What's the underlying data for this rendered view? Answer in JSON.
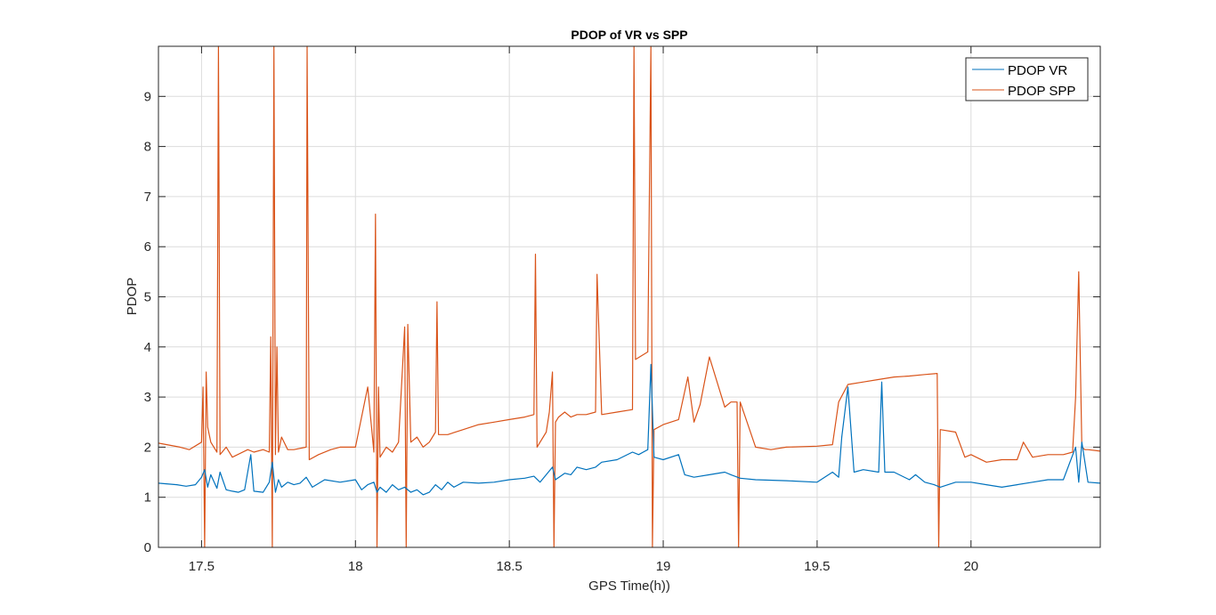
{
  "chart_data": {
    "type": "line",
    "title": "PDOP of VR vs SPP",
    "xlabel": "GPS Time(h))",
    "ylabel": "PDOP",
    "xlim": [
      17.36,
      20.42
    ],
    "ylim": [
      0,
      10
    ],
    "xticks": [
      17.5,
      18,
      18.5,
      19,
      19.5,
      20
    ],
    "xtick_labels": [
      "17.5",
      "18",
      "18.5",
      "19",
      "19.5",
      "20"
    ],
    "yticks": [
      0,
      1,
      2,
      3,
      4,
      5,
      6,
      7,
      8,
      9
    ],
    "ytick_labels": [
      "0",
      "1",
      "2",
      "3",
      "4",
      "5",
      "6",
      "7",
      "8",
      "9"
    ],
    "grid": true,
    "legend_position": "top-right",
    "colors": {
      "vr": "#0072BD",
      "spp": "#D95319"
    },
    "series": [
      {
        "name": "PDOP VR",
        "color": "#0072BD",
        "x": [
          17.36,
          17.42,
          17.45,
          17.48,
          17.5,
          17.51,
          17.52,
          17.53,
          17.55,
          17.56,
          17.58,
          17.6,
          17.62,
          17.64,
          17.66,
          17.67,
          17.7,
          17.72,
          17.73,
          17.74,
          17.75,
          17.76,
          17.78,
          17.8,
          17.82,
          17.84,
          17.86,
          17.9,
          17.95,
          18.0,
          18.02,
          18.04,
          18.06,
          18.07,
          18.08,
          18.1,
          18.12,
          18.14,
          18.16,
          18.18,
          18.2,
          18.22,
          18.24,
          18.26,
          18.28,
          18.3,
          18.32,
          18.35,
          18.4,
          18.45,
          18.5,
          18.55,
          18.58,
          18.6,
          18.62,
          18.64,
          18.65,
          18.68,
          18.7,
          18.72,
          18.75,
          18.78,
          18.8,
          18.85,
          18.9,
          18.92,
          18.95,
          18.96,
          18.97,
          19.0,
          19.05,
          19.07,
          19.1,
          19.15,
          19.2,
          19.22,
          19.25,
          19.3,
          19.4,
          19.5,
          19.55,
          19.57,
          19.58,
          19.6,
          19.62,
          19.65,
          19.7,
          19.71,
          19.72,
          19.75,
          19.8,
          19.82,
          19.85,
          19.88,
          19.9,
          19.95,
          20.0,
          20.05,
          20.1,
          20.15,
          20.2,
          20.25,
          20.3,
          20.34,
          20.35,
          20.36,
          20.38,
          20.42
        ],
        "y": [
          1.28,
          1.25,
          1.22,
          1.25,
          1.4,
          1.55,
          1.2,
          1.45,
          1.18,
          1.5,
          1.15,
          1.12,
          1.1,
          1.15,
          1.85,
          1.12,
          1.1,
          1.3,
          1.7,
          1.1,
          1.35,
          1.2,
          1.3,
          1.25,
          1.28,
          1.4,
          1.2,
          1.35,
          1.3,
          1.35,
          1.15,
          1.25,
          1.3,
          1.1,
          1.2,
          1.1,
          1.25,
          1.15,
          1.2,
          1.1,
          1.15,
          1.05,
          1.1,
          1.25,
          1.15,
          1.3,
          1.2,
          1.3,
          1.28,
          1.3,
          1.35,
          1.38,
          1.42,
          1.3,
          1.45,
          1.6,
          1.35,
          1.48,
          1.45,
          1.6,
          1.55,
          1.6,
          1.7,
          1.75,
          1.9,
          1.85,
          1.95,
          3.65,
          1.8,
          1.75,
          1.85,
          1.45,
          1.4,
          1.45,
          1.5,
          1.45,
          1.38,
          1.35,
          1.33,
          1.3,
          1.5,
          1.4,
          2.2,
          3.2,
          1.5,
          1.55,
          1.5,
          3.3,
          1.5,
          1.5,
          1.35,
          1.45,
          1.3,
          1.25,
          1.2,
          1.3,
          1.3,
          1.25,
          1.2,
          1.25,
          1.3,
          1.35,
          1.35,
          2.0,
          1.3,
          2.1,
          1.3,
          1.28
        ]
      },
      {
        "name": "PDOP SPP",
        "color": "#D95319",
        "x": [
          17.36,
          17.43,
          17.46,
          17.5,
          17.505,
          17.51,
          17.515,
          17.52,
          17.53,
          17.55,
          17.555,
          17.56,
          17.58,
          17.6,
          17.65,
          17.67,
          17.7,
          17.72,
          17.725,
          17.73,
          17.735,
          17.74,
          17.745,
          17.75,
          17.76,
          17.78,
          17.8,
          17.84,
          17.843,
          17.85,
          17.88,
          17.92,
          17.95,
          18.0,
          18.04,
          18.06,
          18.065,
          18.07,
          18.075,
          18.08,
          18.1,
          18.12,
          18.14,
          18.16,
          18.165,
          18.17,
          18.18,
          18.2,
          18.22,
          18.24,
          18.26,
          18.265,
          18.27,
          18.3,
          18.35,
          18.4,
          18.45,
          18.5,
          18.55,
          18.58,
          18.585,
          18.59,
          18.6,
          18.62,
          18.63,
          18.64,
          18.645,
          18.65,
          18.66,
          18.68,
          18.7,
          18.72,
          18.75,
          18.78,
          18.785,
          18.8,
          18.85,
          18.9,
          18.905,
          18.91,
          18.95,
          18.96,
          18.965,
          18.97,
          19.0,
          19.05,
          19.08,
          19.1,
          19.12,
          19.15,
          19.2,
          19.22,
          19.24,
          19.245,
          19.25,
          19.3,
          19.35,
          19.4,
          19.5,
          19.55,
          19.57,
          19.6,
          19.65,
          19.7,
          19.75,
          19.8,
          19.85,
          19.89,
          19.895,
          19.9,
          19.95,
          19.98,
          20.0,
          20.05,
          20.1,
          20.15,
          20.17,
          20.2,
          20.25,
          20.3,
          20.33,
          20.34,
          20.35,
          20.36,
          20.37,
          20.38,
          20.42
        ],
        "y": [
          2.08,
          2.0,
          1.95,
          2.1,
          3.2,
          0,
          3.5,
          2.4,
          2.1,
          1.9,
          10,
          1.85,
          2.0,
          1.8,
          1.95,
          1.9,
          1.95,
          1.9,
          4.2,
          0,
          10,
          1.85,
          4.0,
          1.9,
          2.2,
          1.95,
          1.95,
          2.0,
          10,
          1.75,
          1.85,
          1.95,
          2.0,
          2.0,
          3.2,
          1.9,
          6.65,
          0,
          3.2,
          1.8,
          2.0,
          1.9,
          2.1,
          4.4,
          0,
          4.45,
          2.1,
          2.2,
          2.0,
          2.1,
          2.3,
          4.9,
          2.25,
          2.25,
          2.35,
          2.45,
          2.5,
          2.55,
          2.6,
          2.65,
          5.85,
          2.0,
          2.1,
          2.3,
          2.7,
          3.5,
          0,
          2.5,
          2.6,
          2.7,
          2.6,
          2.65,
          2.65,
          2.7,
          5.45,
          2.65,
          2.7,
          2.75,
          10,
          3.75,
          3.9,
          10,
          0,
          2.35,
          2.45,
          2.55,
          3.4,
          2.5,
          2.85,
          3.8,
          2.8,
          2.9,
          2.9,
          0,
          2.9,
          2.0,
          1.95,
          2.0,
          2.02,
          2.05,
          2.9,
          3.25,
          3.3,
          3.35,
          3.4,
          3.42,
          3.45,
          3.47,
          0,
          2.35,
          2.3,
          1.8,
          1.85,
          1.7,
          1.75,
          1.75,
          2.1,
          1.8,
          1.85,
          1.85,
          1.9,
          3.0,
          5.5,
          2.0,
          1.95,
          1.95,
          1.92
        ]
      }
    ]
  }
}
